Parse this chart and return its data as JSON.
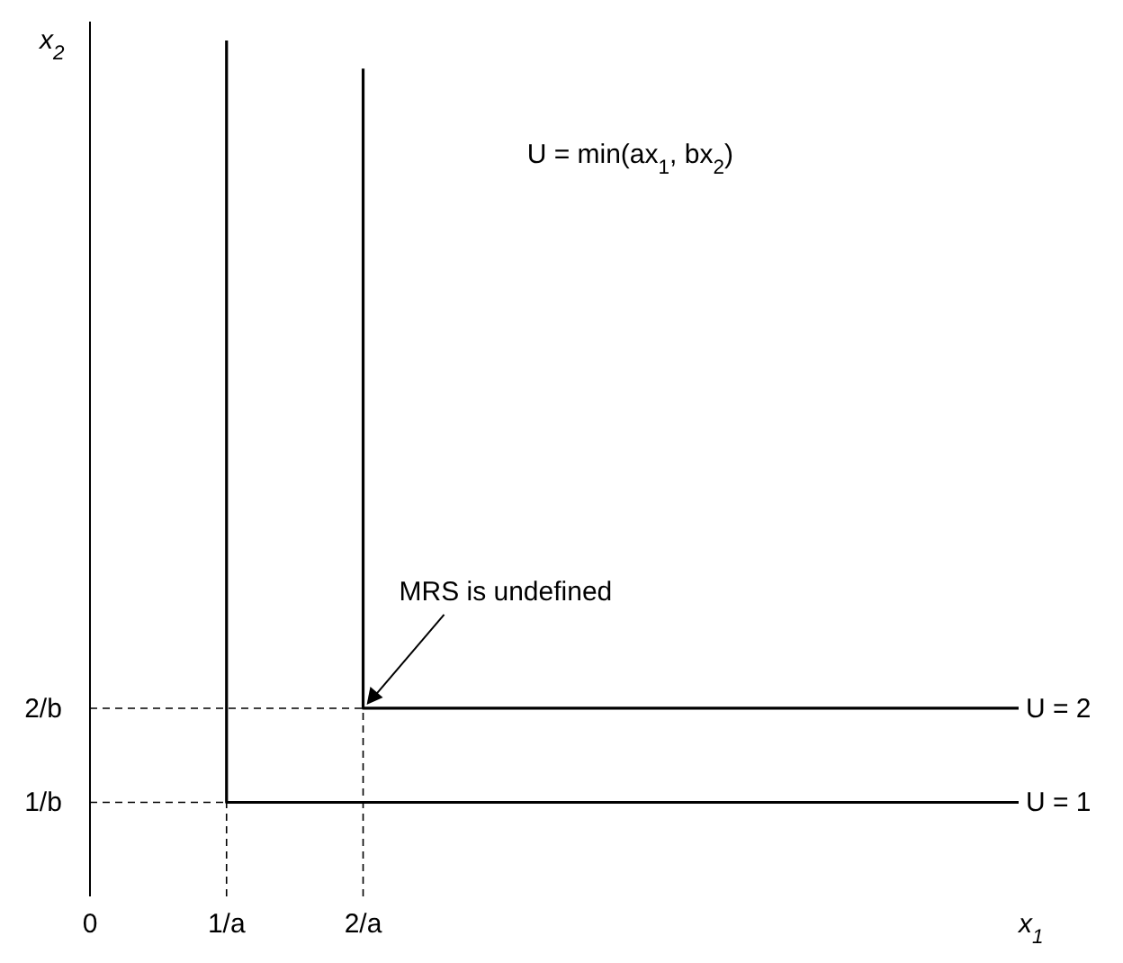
{
  "chart_data": {
    "type": "line",
    "xlabel": "x$_{1}$",
    "ylabel": "x$_{2}$",
    "xlim": [
      0,
      6.8
    ],
    "ylim": [
      0,
      9.3
    ],
    "xticks": [
      0,
      {
        "value": 1,
        "label": "1/a"
      },
      {
        "value": 2,
        "label": "2/a"
      }
    ],
    "yticks": [
      {
        "value": 1,
        "label": "1/b"
      },
      {
        "value": 2,
        "label": "2/b"
      }
    ],
    "grid": false,
    "legend": false,
    "marker": "none",
    "series": [
      {
        "name": "U = 1",
        "color": "#000000",
        "x": [
          1,
          1,
          6.8
        ],
        "values": [
          9.1,
          1,
          1
        ],
        "line_style": "solid"
      },
      {
        "name": "U = 2",
        "color": "#000000",
        "x": [
          2,
          2,
          6.8
        ],
        "values": [
          8.8,
          2,
          2
        ],
        "line_style": "solid"
      },
      {
        "color": "#000000",
        "x": [
          0,
          1
        ],
        "values": [
          1,
          1
        ],
        "line_style": "dashed"
      },
      {
        "color": "#000000",
        "x": [
          0,
          2
        ],
        "values": [
          2,
          2
        ],
        "line_style": "dashed"
      },
      {
        "color": "#000000",
        "x": [
          1,
          1
        ],
        "values": [
          0,
          1
        ],
        "line_style": "dashed"
      },
      {
        "color": "#000000",
        "x": [
          2,
          2
        ],
        "values": [
          0,
          2
        ],
        "line_style": "dashed"
      }
    ],
    "annotations": [
      "U = min(ax$_{1}$, bx$_{2}$)",
      {
        "text": "MRS is undefined",
        "x": 2,
        "y": 2
      }
    ]
  }
}
